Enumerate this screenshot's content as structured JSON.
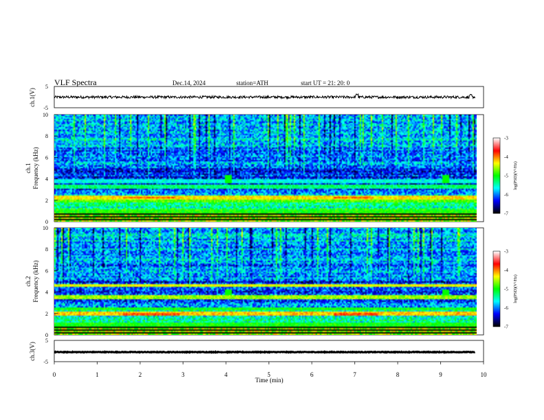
{
  "header": {
    "title": "VLF  Spectra",
    "date": "Dec.14, 2024",
    "station": "station=ATH",
    "start_ut": "start  UT  =   21: 20: 0"
  },
  "chart_data": [
    {
      "id": "ch1-waveform",
      "type": "line",
      "ylabel": "ch.1(V)",
      "yticks": [
        "5",
        "-5"
      ],
      "ylim": [
        -5,
        5
      ],
      "xlim": [
        0,
        10
      ],
      "baseline": 0,
      "x_end": 9.8,
      "noise_amplitude": 0.6,
      "spikes": [
        {
          "x": 7.05,
          "y": 1.2
        },
        {
          "x": 9.7,
          "y": 1.0
        }
      ]
    },
    {
      "id": "ch1-spectrogram",
      "type": "heatmap",
      "ylabel": "ch.1",
      "ylabel2": "Frequency  (kHz)",
      "yticks": [
        "10",
        "8",
        "6",
        "4",
        "2",
        "0"
      ],
      "ylim": [
        0,
        10
      ],
      "xlim": [
        0,
        10
      ],
      "x_end": 9.8,
      "colorbar": {
        "label": "log(PSD)(V²/Hz)",
        "ticks": [
          "-3",
          "-4",
          "-5",
          "-6",
          "-7"
        ],
        "range": [
          -7,
          -3
        ],
        "colors": [
          "#000000",
          "#0000ff",
          "#00ffff",
          "#00ff00",
          "#ffff00",
          "#ff0000",
          "#ffffff"
        ]
      },
      "bands": [
        {
          "f": 1.9,
          "level": -4.8
        },
        {
          "f": 2.2,
          "level": -4.3
        },
        {
          "f": 3.2,
          "level": -5.3
        },
        {
          "f": 3.8,
          "level": -5.6
        },
        {
          "f": 0.9,
          "level": -5.0
        }
      ],
      "red_segments": [
        {
          "x0": 1.6,
          "x1": 2.8,
          "f": 2.2
        },
        {
          "x0": 6.5,
          "x1": 7.4,
          "f": 2.2
        }
      ],
      "bursts": [
        {
          "x": 4.05,
          "f": 4.0
        },
        {
          "x": 9.1,
          "f": 4.0
        }
      ]
    },
    {
      "id": "ch2-spectrogram",
      "type": "heatmap",
      "ylabel": "ch.2",
      "ylabel2": "Frequency  (kHz)",
      "yticks": [
        "10",
        "8",
        "6",
        "4",
        "2",
        "0"
      ],
      "ylim": [
        0,
        10
      ],
      "xlim": [
        0,
        10
      ],
      "x_end": 9.8,
      "colorbar": {
        "label": "log(PSD)(V²/Hz)",
        "ticks": [
          "-3",
          "-4",
          "-5",
          "-6",
          "-7"
        ],
        "range": [
          -7,
          -3
        ],
        "colors": [
          "#000000",
          "#0000ff",
          "#00ffff",
          "#00ff00",
          "#ffff00",
          "#ff0000",
          "#ffffff"
        ]
      },
      "bands": [
        {
          "f": 1.9,
          "level": -4.2
        },
        {
          "f": 3.5,
          "level": -4.6
        },
        {
          "f": 4.6,
          "level": -4.4
        },
        {
          "f": 2.4,
          "level": -5.0
        },
        {
          "f": 0.9,
          "level": -5.0
        }
      ],
      "red_segments": [
        {
          "x0": 1.6,
          "x1": 2.9,
          "f": 1.9
        },
        {
          "x0": 6.5,
          "x1": 7.5,
          "f": 1.9
        }
      ],
      "bursts": [
        {
          "x": 4.05,
          "f": 3.8
        },
        {
          "x": 9.1,
          "f": 3.8
        }
      ]
    },
    {
      "id": "ch3-waveform",
      "type": "line",
      "ylabel": "ch.3(V)",
      "yticks": [
        "5",
        "-5"
      ],
      "ylim": [
        -5,
        5
      ],
      "xlim": [
        0,
        10
      ],
      "baseline": -0.5,
      "x_end": 9.8,
      "noise_amplitude": 0.15,
      "xlabel": "Time  (min)",
      "xticks": [
        "0",
        "1",
        "2",
        "3",
        "4",
        "5",
        "6",
        "7",
        "8",
        "9",
        "10"
      ]
    }
  ]
}
